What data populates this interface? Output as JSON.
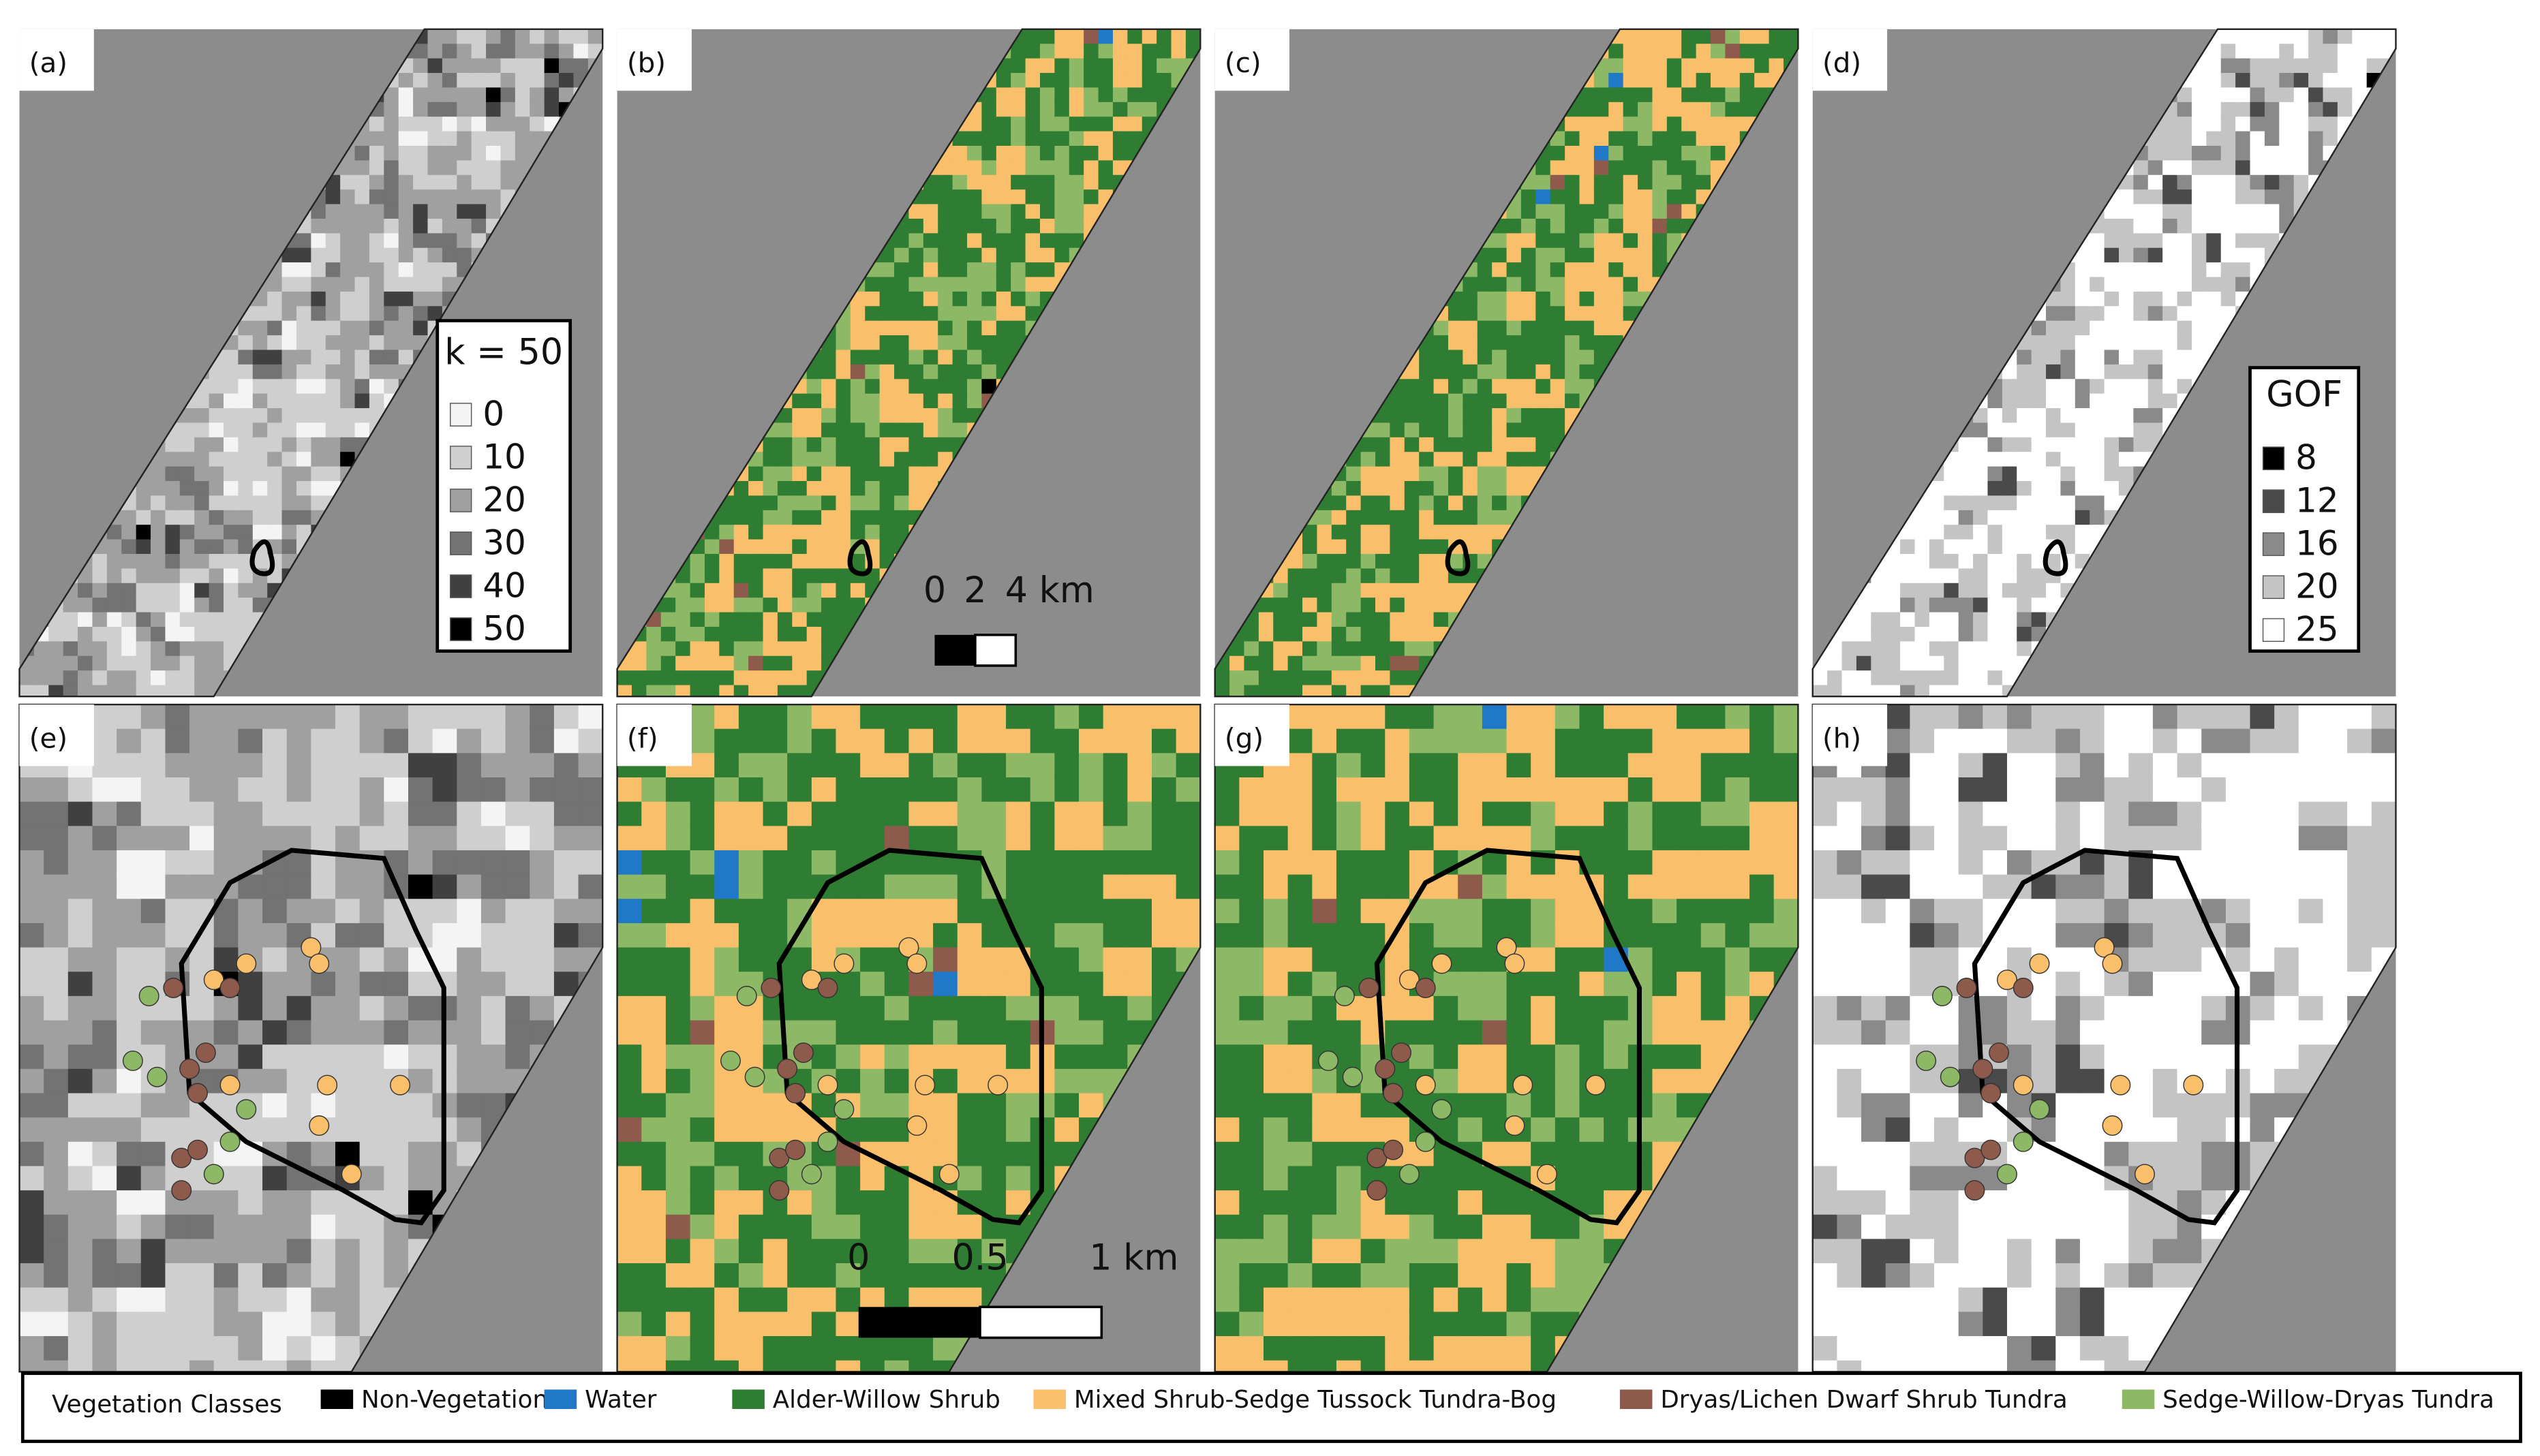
{
  "panels": [
    {
      "label": "(a)"
    },
    {
      "label": "(b)"
    },
    {
      "label": "(c)"
    },
    {
      "label": "(d)"
    },
    {
      "label": "(e)"
    },
    {
      "label": "(f)"
    },
    {
      "label": "(g)"
    },
    {
      "label": "(h)"
    }
  ],
  "k_legend": {
    "title": "k = 50",
    "items": [
      {
        "label": "0",
        "color": "#f4f4f4"
      },
      {
        "label": "10",
        "color": "#cfcfcf"
      },
      {
        "label": "20",
        "color": "#a0a0a0"
      },
      {
        "label": "30",
        "color": "#737373"
      },
      {
        "label": "40",
        "color": "#404040"
      },
      {
        "label": "50",
        "color": "#000000"
      }
    ]
  },
  "gof_legend": {
    "title": "GOF",
    "items": [
      {
        "label": "8",
        "color": "#000000"
      },
      {
        "label": "12",
        "color": "#4a4a4a"
      },
      {
        "label": "16",
        "color": "#8a8a8a"
      },
      {
        "label": "20",
        "color": "#c4c4c4"
      },
      {
        "label": "25",
        "color": "#ffffff"
      }
    ]
  },
  "scale_bar_top": {
    "labels": [
      "0",
      "2",
      "4 km"
    ]
  },
  "scale_bar_bottom": {
    "labels": [
      "0",
      "0.5",
      "1 km"
    ]
  },
  "vegetation_legend": {
    "title": "Vegetation Classes",
    "classes": [
      {
        "name": "Non-Vegetation",
        "color": "#000000"
      },
      {
        "name": "Water",
        "color": "#1f78c8"
      },
      {
        "name": "Alder-Willow Shrub",
        "color": "#2e7d32"
      },
      {
        "name": "Mixed Shrub-Sedge Tussock Tundra-Bog",
        "color": "#f9bf6a"
      },
      {
        "name": "Dryas/Lichen Dwarf Shrub Tundra",
        "color": "#8d5a4b"
      },
      {
        "name": "Sedge-Willow-Dryas Tundra",
        "color": "#8db866"
      }
    ]
  }
}
